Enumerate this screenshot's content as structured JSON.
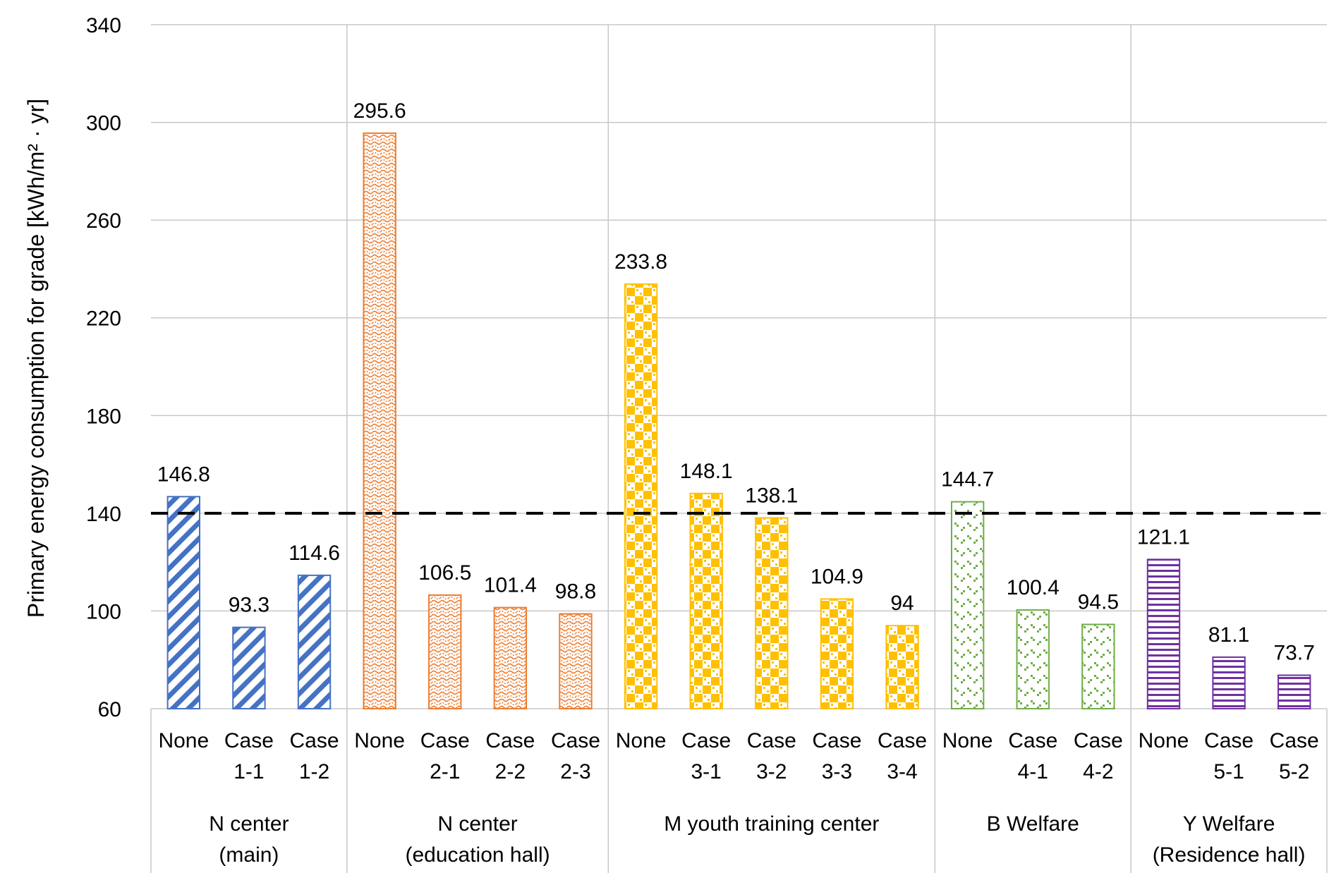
{
  "chart_data": {
    "type": "bar",
    "title": "",
    "xlabel": "",
    "ylabel": "Primary energy consumption for grade [kWh/m² · yr]",
    "ylim": [
      60,
      340
    ],
    "yticks": [
      60,
      100,
      140,
      180,
      220,
      260,
      300,
      340
    ],
    "grid": true,
    "legend": "none",
    "reference_line": {
      "value": 140,
      "style": "dashed",
      "color": "#000000"
    },
    "groups": [
      {
        "name": [
          "N center",
          "(main)"
        ],
        "color": "#4472C4",
        "pattern": "diagonal",
        "bars": [
          {
            "label": [
              "None"
            ],
            "value": 146.8
          },
          {
            "label": [
              "Case",
              "1-1"
            ],
            "value": 93.3
          },
          {
            "label": [
              "Case",
              "1-2"
            ],
            "value": 114.6
          }
        ]
      },
      {
        "name": [
          "N center",
          "(education hall)"
        ],
        "color": "#ED7D31",
        "pattern": "wave",
        "bars": [
          {
            "label": [
              "None"
            ],
            "value": 295.6
          },
          {
            "label": [
              "Case",
              "2-1"
            ],
            "value": 106.5
          },
          {
            "label": [
              "Case",
              "2-2"
            ],
            "value": 101.4
          },
          {
            "label": [
              "Case",
              "2-3"
            ],
            "value": 98.8
          }
        ]
      },
      {
        "name": [
          "M youth training center"
        ],
        "color": "#FFC000",
        "pattern": "checker",
        "bars": [
          {
            "label": [
              "None"
            ],
            "value": 233.8
          },
          {
            "label": [
              "Case",
              "3-1"
            ],
            "value": 148.1
          },
          {
            "label": [
              "Case",
              "3-2"
            ],
            "value": 138.1
          },
          {
            "label": [
              "Case",
              "3-3"
            ],
            "value": 104.9
          },
          {
            "label": [
              "Case",
              "3-4"
            ],
            "value": 94
          }
        ]
      },
      {
        "name": [
          "B Welfare"
        ],
        "color": "#70AD47",
        "pattern": "dots",
        "bars": [
          {
            "label": [
              "None"
            ],
            "value": 144.7
          },
          {
            "label": [
              "Case",
              "4-1"
            ],
            "value": 100.4
          },
          {
            "label": [
              "Case",
              "4-2"
            ],
            "value": 94.5
          }
        ]
      },
      {
        "name": [
          "Y Welfare",
          "(Residence hall)"
        ],
        "color": "#7030A0",
        "pattern": "horizontal",
        "bars": [
          {
            "label": [
              "None"
            ],
            "value": 121.1
          },
          {
            "label": [
              "Case",
              "5-1"
            ],
            "value": 81.1
          },
          {
            "label": [
              "Case",
              "5-2"
            ],
            "value": 73.7
          }
        ]
      }
    ]
  }
}
